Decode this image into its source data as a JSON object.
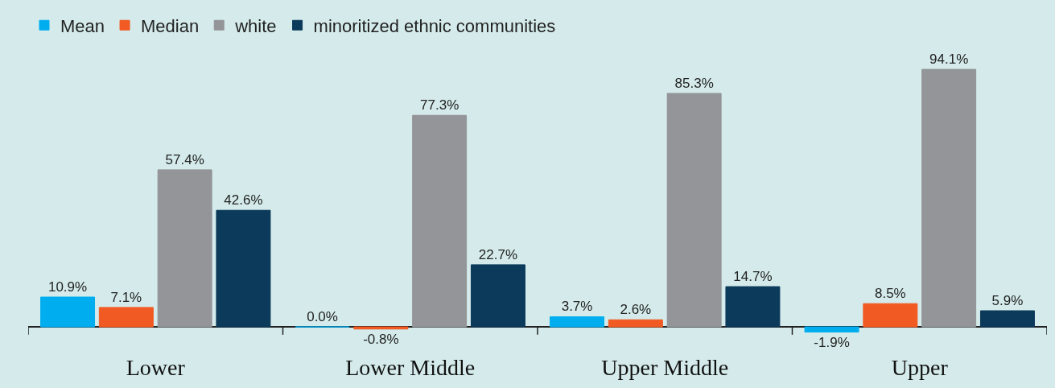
{
  "chart_data": {
    "type": "bar",
    "categories": [
      "Lower",
      "Lower Middle",
      "Upper Middle",
      "Upper"
    ],
    "series": [
      {
        "name": "Mean",
        "color": "#00aeef",
        "values": [
          10.9,
          0.0,
          3.7,
          -1.9
        ],
        "value_labels": [
          "10.9%",
          "0.0%",
          "3.7%",
          "-1.9%"
        ]
      },
      {
        "name": "Median",
        "color": "#f15a22",
        "values": [
          7.1,
          -0.8,
          2.6,
          8.5
        ],
        "value_labels": [
          "7.1%",
          "-0.8%",
          "2.6%",
          "8.5%"
        ]
      },
      {
        "name": "white",
        "color": "#939598",
        "values": [
          57.4,
          77.3,
          85.3,
          94.1
        ],
        "value_labels": [
          "57.4%",
          "77.3%",
          "85.3%",
          "94.1%"
        ]
      },
      {
        "name": "minoritized ethnic communities",
        "color": "#0c3a5b",
        "values": [
          42.6,
          22.7,
          14.7,
          5.9
        ],
        "value_labels": [
          "42.6%",
          "22.7%",
          "14.7%",
          "5.9%"
        ]
      }
    ],
    "legend": "top left",
    "grid": false
  }
}
